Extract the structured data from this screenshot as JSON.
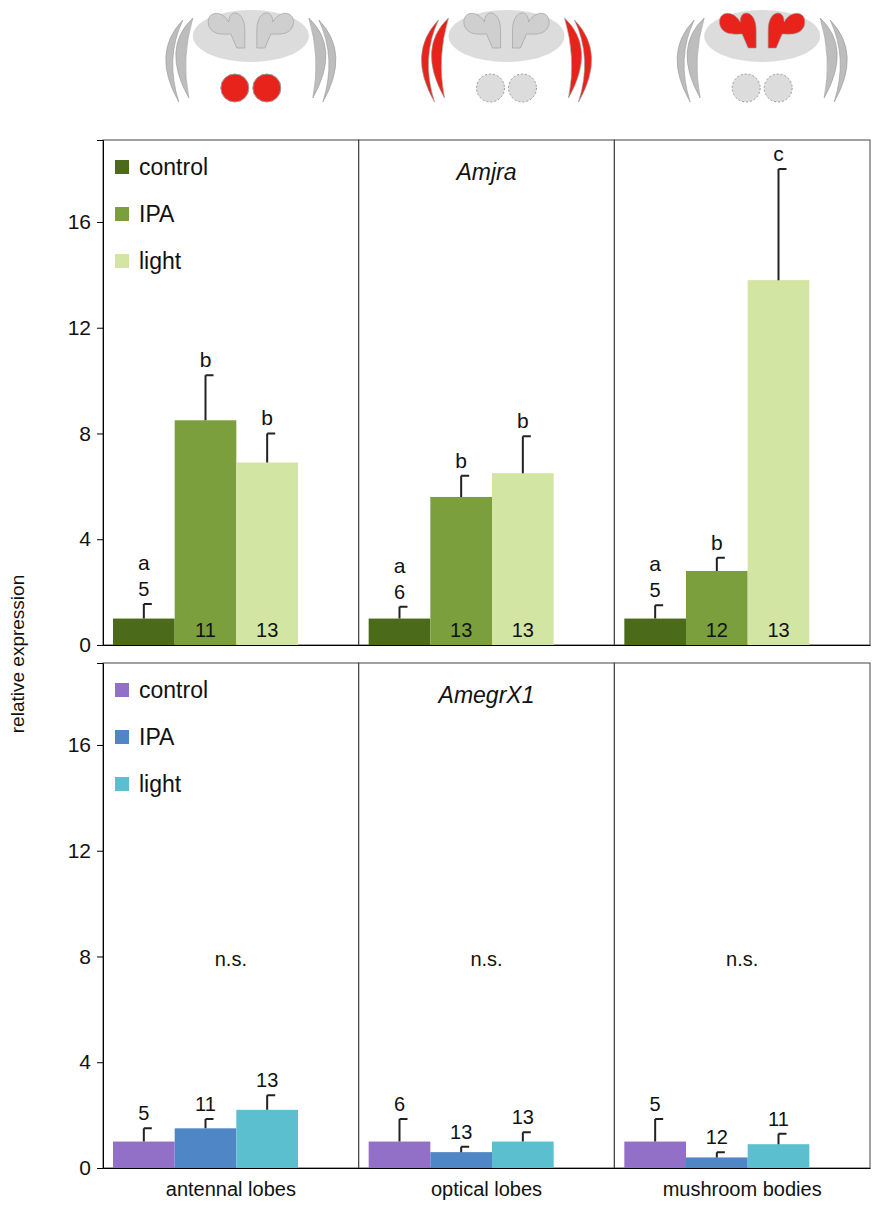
{
  "chart_data": [
    {
      "type": "bar",
      "title": "Amjra",
      "ylabel": "relative expression",
      "categories": [
        null,
        null,
        null
      ],
      "series": [
        {
          "name": "control",
          "color": "#4b6a1a",
          "values": [
            1.0,
            1.0,
            1.0
          ],
          "errors": [
            0.55,
            0.45,
            0.5
          ],
          "letters": [
            "a",
            "a",
            "a"
          ],
          "n": [
            5,
            6,
            5
          ]
        },
        {
          "name": "IPA",
          "color": "#7c9f3e",
          "values": [
            8.5,
            5.6,
            2.8
          ],
          "errors": [
            1.7,
            0.8,
            0.5
          ],
          "letters": [
            "b",
            "b",
            "b"
          ],
          "n": [
            11,
            13,
            12
          ]
        },
        {
          "name": "light",
          "color": "#d3e5a3",
          "values": [
            6.9,
            6.5,
            13.8
          ],
          "errors": [
            1.1,
            1.4,
            4.2
          ],
          "letters": [
            "b",
            "b",
            "c"
          ],
          "n": [
            13,
            13,
            13
          ]
        }
      ],
      "ylim": [
        0,
        19.1
      ],
      "yticks": [
        0,
        4,
        8,
        12,
        16
      ],
      "legend": "upper left"
    },
    {
      "type": "bar",
      "title": "AmegrX1",
      "categories": [
        "antennal lobes",
        "optical lobes",
        "mushroom bodies"
      ],
      "series": [
        {
          "name": "control",
          "color": "#9370c8",
          "values": [
            1.0,
            1.0,
            1.0
          ],
          "errors": [
            0.5,
            0.85,
            0.85
          ],
          "n": [
            5,
            6,
            5
          ]
        },
        {
          "name": "IPA",
          "color": "#4f86c6",
          "values": [
            1.5,
            0.6,
            0.4
          ],
          "errors": [
            0.35,
            0.2,
            0.2
          ],
          "n": [
            11,
            13,
            12
          ]
        },
        {
          "name": "light",
          "color": "#5bbfd0",
          "values": [
            2.2,
            1.0,
            0.9
          ],
          "errors": [
            0.55,
            0.35,
            0.4
          ],
          "n": [
            13,
            13,
            11
          ]
        }
      ],
      "significance": [
        "n.s.",
        "n.s.",
        "n.s."
      ],
      "ylim": [
        0,
        19.1
      ],
      "yticks": [
        0,
        4,
        8,
        12,
        16
      ],
      "legend": "upper left"
    }
  ]
}
